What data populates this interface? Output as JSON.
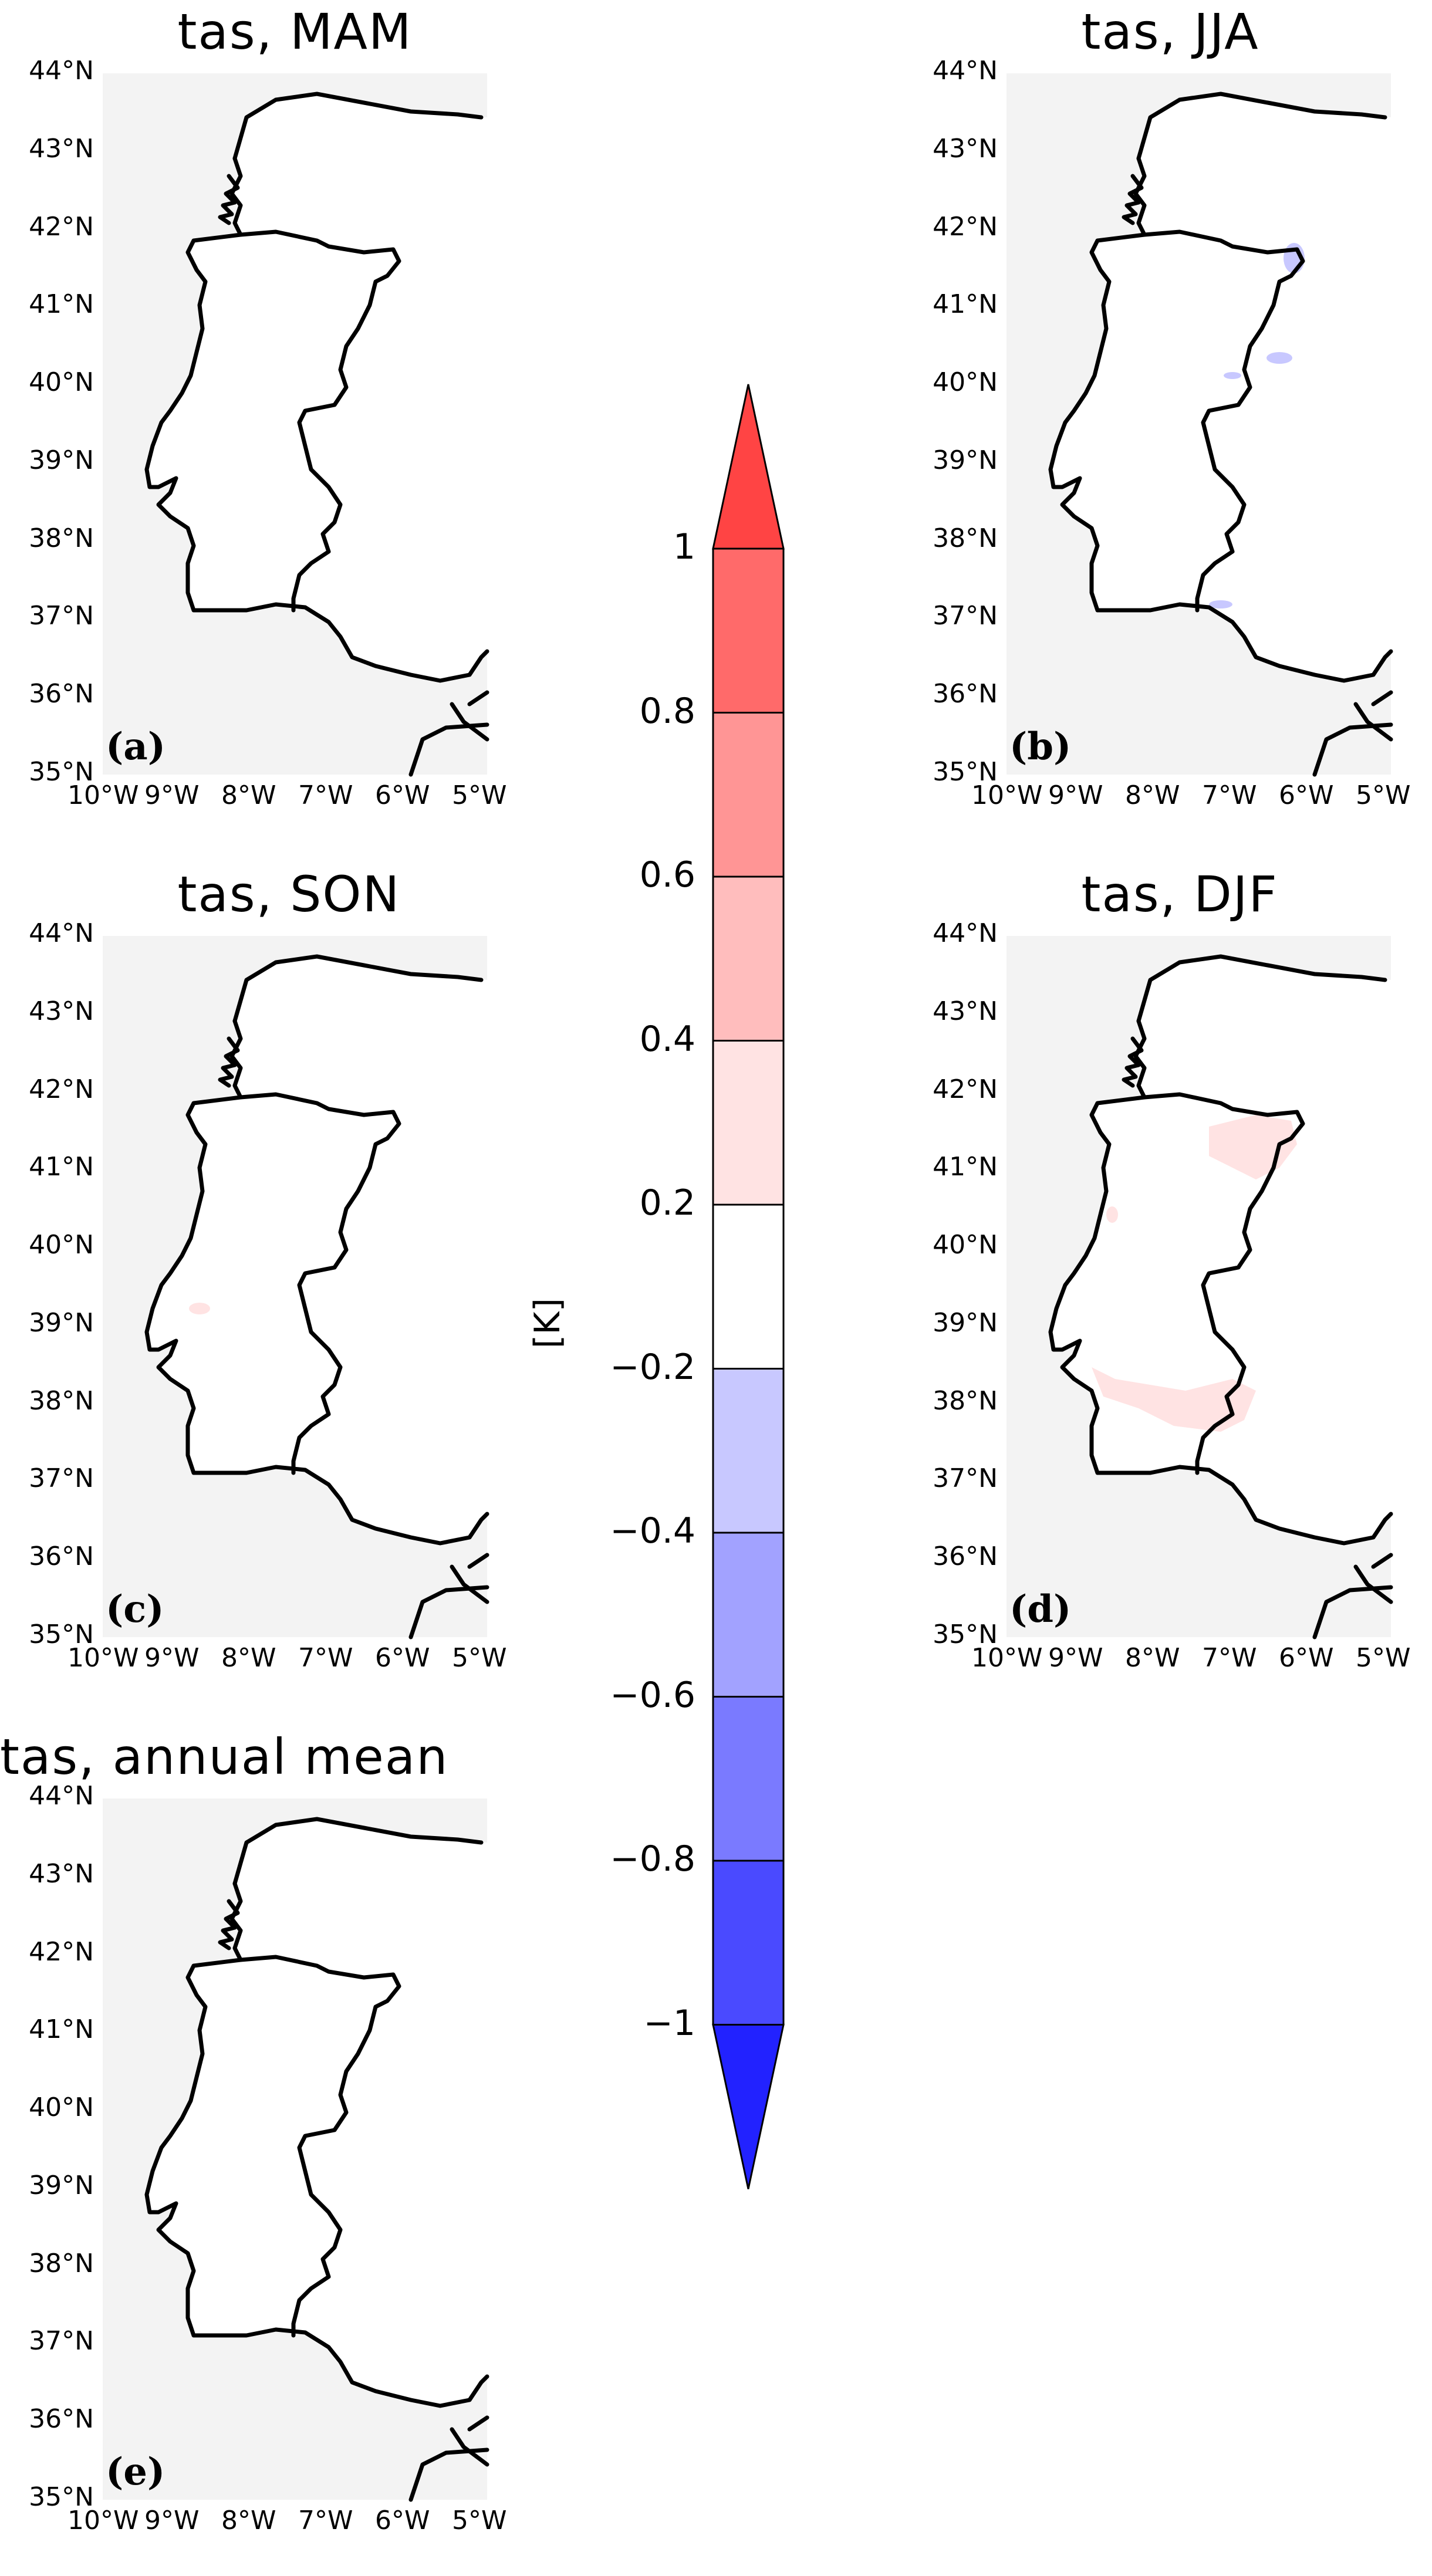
{
  "panels": [
    {
      "id": "a",
      "title": "tas, MAM",
      "letter": "(a)",
      "anomaly": "none"
    },
    {
      "id": "b",
      "title": "tas, JJA",
      "letter": "(b)",
      "anomaly": "blue"
    },
    {
      "id": "c",
      "title": "tas, SON",
      "letter": "(c)",
      "anomaly": "tiny-red"
    },
    {
      "id": "d",
      "title": "tas, DJF",
      "letter": "(d)",
      "anomaly": "red"
    },
    {
      "id": "e",
      "title": "tas, annual mean",
      "letter": "(e)",
      "anomaly": "none"
    }
  ],
  "lat_labels": [
    "44°N",
    "43°N",
    "42°N",
    "41°N",
    "40°N",
    "39°N",
    "38°N",
    "37°N",
    "36°N",
    "35°N"
  ],
  "lon_labels": [
    "10°W",
    "9°W",
    "8°W",
    "7°W",
    "6°W",
    "5°W"
  ],
  "colorbar": {
    "label": "[K]",
    "ticks": [
      "1",
      "0.8",
      "0.6",
      "0.4",
      "0.2",
      "−0.2",
      "−0.4",
      "−0.6",
      "−0.8",
      "−1"
    ],
    "colors": {
      "over": "#ff4444",
      "c_0_8_1": "#ff6a6a",
      "c_0_6_0_8": "#ff9595",
      "c_0_4_0_6": "#ffbdbd",
      "c_0_2_0_4": "#ffe3e3",
      "c_m0_2_0_2": "#ffffff",
      "c_m0_4_m0_2": "#c8c8ff",
      "c_m0_6_m0_4": "#a2a2ff",
      "c_m0_8_m0_6": "#7a7aff",
      "c_m1_m0_8": "#4a4aff",
      "under": "#2222ff"
    }
  },
  "colors": {
    "sea": "#f3f3f3",
    "land": "#ffffff",
    "coast": "#000000"
  }
}
